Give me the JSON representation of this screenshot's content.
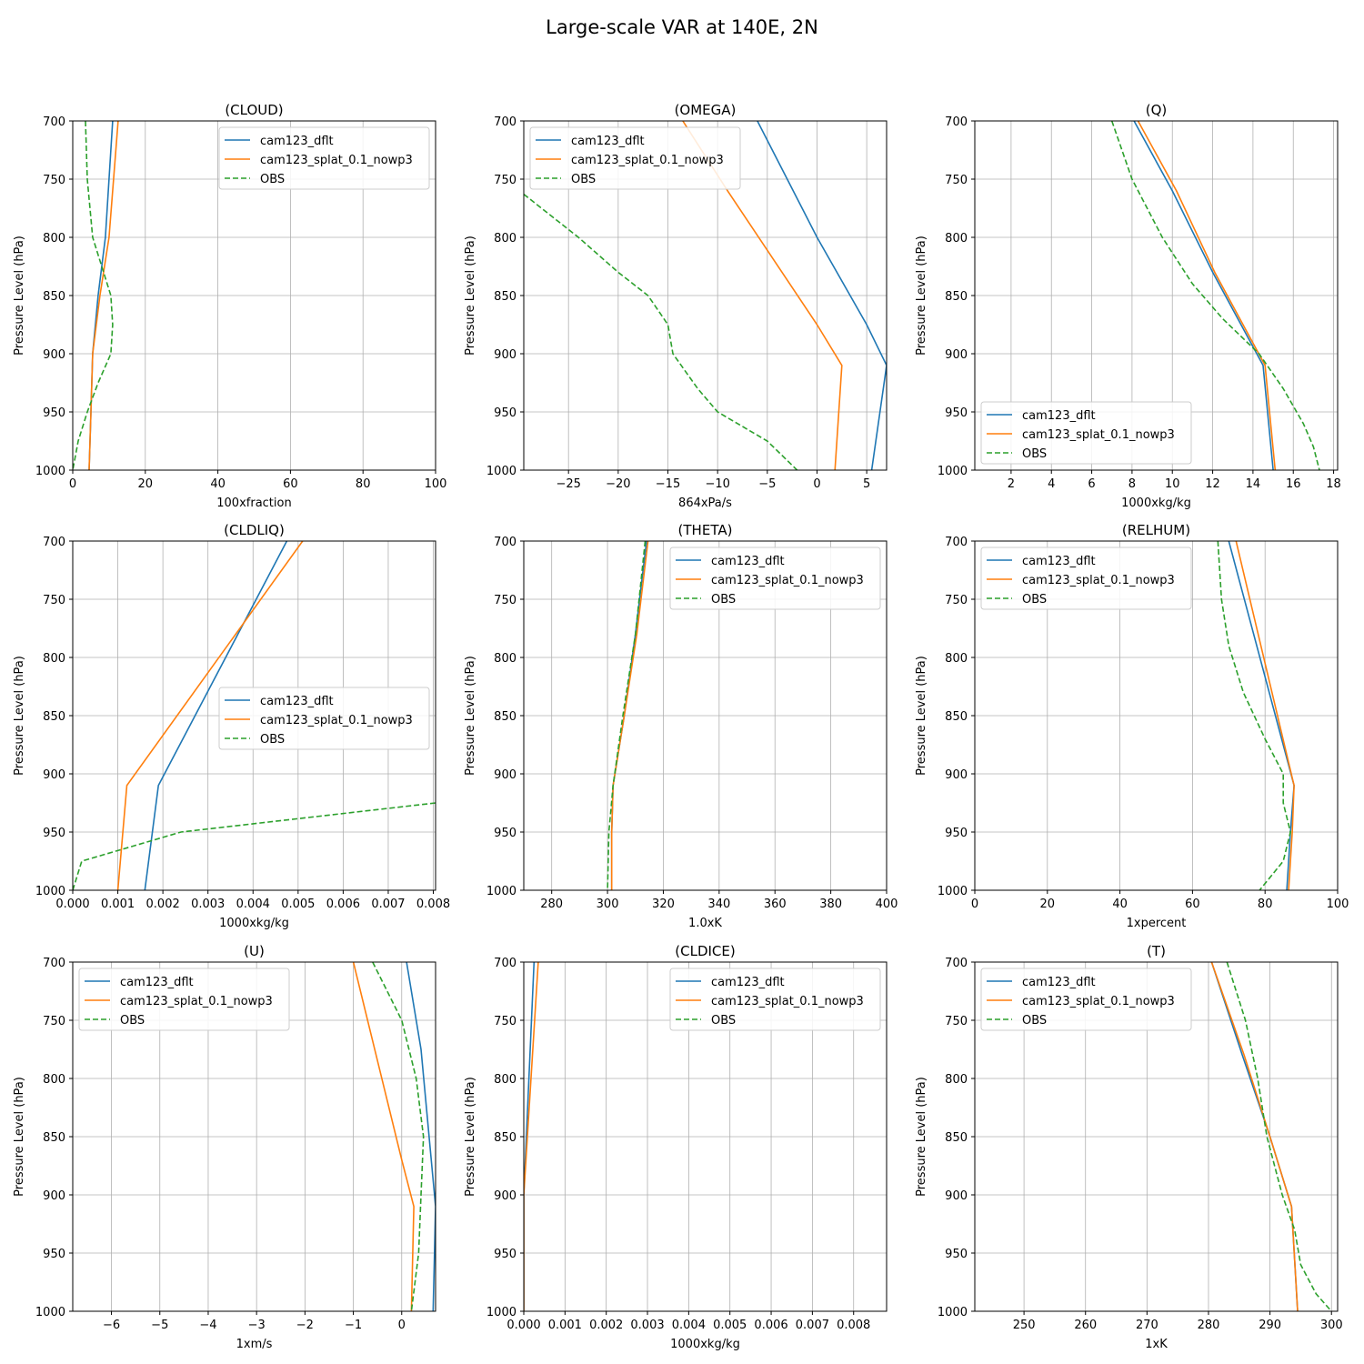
{
  "figure": {
    "suptitle": "Large-scale VAR at 140E, 2N"
  },
  "series_styles": [
    {
      "name": "cam123_dflt",
      "color": "#1f77b4",
      "dash": ""
    },
    {
      "name": "cam123_splat_0.1_nowp3",
      "color": "#ff7f0e",
      "dash": ""
    },
    {
      "name": "OBS",
      "color": "#2ca02c",
      "dash": "6,3"
    }
  ],
  "chart_data": [
    {
      "type": "line",
      "title": "(CLOUD)",
      "xlabel": "100xfraction",
      "ylabel": "Pressure Level (hPa)",
      "xlim": [
        0,
        100
      ],
      "ylim": [
        1000,
        700
      ],
      "y_inverted": true,
      "grid": true,
      "xticks": [
        0,
        20,
        40,
        60,
        80,
        100
      ],
      "xticklabels": [
        "0",
        "20",
        "40",
        "60",
        "80",
        "100"
      ],
      "yticks": [
        700,
        750,
        800,
        850,
        900,
        950,
        1000
      ],
      "legend": "top-right",
      "series": [
        {
          "name": "cam123_dflt",
          "points": [
            [
              11,
              700
            ],
            [
              9,
              800
            ],
            [
              7,
              850
            ],
            [
              5.5,
              900
            ],
            [
              5,
              950
            ],
            [
              4.5,
              1000
            ]
          ]
        },
        {
          "name": "cam123_splat_0.1_nowp3",
          "points": [
            [
              12.5,
              700
            ],
            [
              10,
              800
            ],
            [
              7.5,
              850
            ],
            [
              5.5,
              900
            ],
            [
              5,
              950
            ],
            [
              4.5,
              1000
            ]
          ]
        },
        {
          "name": "OBS",
          "points": [
            [
              3.5,
              700
            ],
            [
              4,
              750
            ],
            [
              5.5,
              800
            ],
            [
              8,
              825
            ],
            [
              10.5,
              850
            ],
            [
              11,
              875
            ],
            [
              10.5,
              900
            ],
            [
              7,
              925
            ],
            [
              4,
              950
            ],
            [
              1.5,
              975
            ],
            [
              0,
              1000
            ]
          ]
        }
      ]
    },
    {
      "type": "line",
      "title": "(OMEGA)",
      "xlabel": "864xPa/s",
      "ylabel": "Pressure Level (hPa)",
      "xlim": [
        -29.5,
        7
      ],
      "ylim": [
        1000,
        700
      ],
      "y_inverted": true,
      "grid": true,
      "xticks": [
        -25,
        -20,
        -15,
        -10,
        -5,
        0,
        5
      ],
      "xticklabels": [
        "−25",
        "−20",
        "−15",
        "−10",
        "−5",
        "0",
        "5"
      ],
      "yticks": [
        700,
        750,
        800,
        850,
        900,
        950,
        1000
      ],
      "legend": "top-left",
      "series": [
        {
          "name": "cam123_dflt",
          "points": [
            [
              -6,
              700
            ],
            [
              -4.5,
              725
            ],
            [
              0,
              800
            ],
            [
              5,
              875
            ],
            [
              7,
              910
            ],
            [
              5.5,
              1000
            ]
          ]
        },
        {
          "name": "cam123_splat_0.1_nowp3",
          "points": [
            [
              -13.5,
              700
            ],
            [
              -9,
              760
            ],
            [
              0,
              875
            ],
            [
              2.5,
              910
            ],
            [
              1.8,
              1000
            ]
          ]
        },
        {
          "name": "OBS",
          "points": [
            [
              -29.5,
              763
            ],
            [
              -24,
              800
            ],
            [
              -20,
              830
            ],
            [
              -17,
              850
            ],
            [
              -15,
              875
            ],
            [
              -14.5,
              900
            ],
            [
              -12,
              930
            ],
            [
              -10,
              950
            ],
            [
              -5,
              975
            ],
            [
              -2,
              1000
            ]
          ]
        }
      ]
    },
    {
      "type": "line",
      "title": "(Q)",
      "xlabel": "1000xkg/kg",
      "ylabel": "Pressure Level (hPa)",
      "xlim": [
        0.2,
        18.2
      ],
      "ylim": [
        1000,
        700
      ],
      "y_inverted": true,
      "grid": true,
      "xticks": [
        2,
        4,
        6,
        8,
        10,
        12,
        14,
        16,
        18
      ],
      "xticklabels": [
        "2",
        "4",
        "6",
        "8",
        "10",
        "12",
        "14",
        "16",
        "18"
      ],
      "yticks": [
        700,
        750,
        800,
        850,
        900,
        950,
        1000
      ],
      "legend": "lower-left",
      "series": [
        {
          "name": "cam123_dflt",
          "points": [
            [
              8.1,
              700
            ],
            [
              10,
              760
            ],
            [
              12,
              830
            ],
            [
              14.5,
              910
            ],
            [
              15,
              1000
            ]
          ]
        },
        {
          "name": "cam123_splat_0.1_nowp3",
          "points": [
            [
              8.3,
              700
            ],
            [
              10.2,
              760
            ],
            [
              12.1,
              830
            ],
            [
              14.6,
              910
            ],
            [
              15.1,
              1000
            ]
          ]
        },
        {
          "name": "OBS",
          "points": [
            [
              7,
              700
            ],
            [
              8,
              750
            ],
            [
              9.5,
              800
            ],
            [
              11,
              840
            ],
            [
              12.5,
              870
            ],
            [
              14.3,
              900
            ],
            [
              15.5,
              930
            ],
            [
              16.5,
              960
            ],
            [
              17,
              980
            ],
            [
              17.3,
              1000
            ]
          ]
        }
      ]
    },
    {
      "type": "line",
      "title": "(CLDLIQ)",
      "xlabel": "1000xkg/kg",
      "ylabel": "Pressure Level (hPa)",
      "xlim": [
        0,
        0.00805
      ],
      "ylim": [
        1000,
        700
      ],
      "y_inverted": true,
      "grid": true,
      "xticks": [
        0,
        0.001,
        0.002,
        0.003,
        0.004,
        0.005,
        0.006,
        0.007,
        0.008
      ],
      "xticklabels": [
        "0.000",
        "0.001",
        "0.002",
        "0.003",
        "0.004",
        "0.005",
        "0.006",
        "0.007",
        "0.008"
      ],
      "yticks": [
        700,
        750,
        800,
        850,
        900,
        950,
        1000
      ],
      "legend": "center-right",
      "series": [
        {
          "name": "cam123_dflt",
          "points": [
            [
              0.00475,
              700
            ],
            [
              0.0019,
              910
            ],
            [
              0.0016,
              1000
            ]
          ]
        },
        {
          "name": "cam123_splat_0.1_nowp3",
          "points": [
            [
              0.0051,
              700
            ],
            [
              0.0012,
              910
            ],
            [
              0.001,
              1000
            ]
          ]
        },
        {
          "name": "OBS",
          "points": [
            [
              0.00805,
              925
            ],
            [
              0.0024,
              950
            ],
            [
              0.0002,
              975
            ],
            [
              0,
              1000
            ]
          ]
        }
      ]
    },
    {
      "type": "line",
      "title": "(THETA)",
      "xlabel": "1.0xK",
      "ylabel": "Pressure Level (hPa)",
      "xlim": [
        270,
        400
      ],
      "ylim": [
        1000,
        700
      ],
      "y_inverted": true,
      "grid": true,
      "xticks": [
        280,
        300,
        320,
        340,
        360,
        380,
        400
      ],
      "xticklabels": [
        "280",
        "300",
        "320",
        "340",
        "360",
        "380",
        "400"
      ],
      "yticks": [
        700,
        750,
        800,
        850,
        900,
        950,
        1000
      ],
      "legend": "top-right",
      "series": [
        {
          "name": "cam123_dflt",
          "points": [
            [
              314,
              700
            ],
            [
              310,
              780
            ],
            [
              306,
              850
            ],
            [
              302,
              910
            ],
            [
              301.5,
              950
            ],
            [
              301.5,
              1000
            ]
          ]
        },
        {
          "name": "cam123_splat_0.1_nowp3",
          "points": [
            [
              314.5,
              700
            ],
            [
              310.5,
              780
            ],
            [
              306,
              850
            ],
            [
              302,
              910
            ],
            [
              301.5,
              950
            ],
            [
              301.5,
              1000
            ]
          ]
        },
        {
          "name": "OBS",
          "points": [
            [
              313.5,
              700
            ],
            [
              310,
              780
            ],
            [
              305.5,
              850
            ],
            [
              302,
              910
            ],
            [
              300.5,
              950
            ],
            [
              300,
              1000
            ]
          ]
        }
      ]
    },
    {
      "type": "line",
      "title": "(RELHUM)",
      "xlabel": "1xpercent",
      "ylabel": "Pressure Level (hPa)",
      "xlim": [
        0,
        100
      ],
      "ylim": [
        1000,
        700
      ],
      "y_inverted": true,
      "grid": true,
      "xticks": [
        0,
        20,
        40,
        60,
        80,
        100
      ],
      "xticklabels": [
        "0",
        "20",
        "40",
        "60",
        "80",
        "100"
      ],
      "yticks": [
        700,
        750,
        800,
        850,
        900,
        950,
        1000
      ],
      "legend": "top-left",
      "series": [
        {
          "name": "cam123_dflt",
          "points": [
            [
              70,
              700
            ],
            [
              88,
              910
            ],
            [
              87,
              950
            ],
            [
              86,
              1000
            ]
          ]
        },
        {
          "name": "cam123_splat_0.1_nowp3",
          "points": [
            [
              72,
              700
            ],
            [
              88,
              910
            ],
            [
              87.5,
              950
            ],
            [
              86.5,
              1000
            ]
          ]
        },
        {
          "name": "OBS",
          "points": [
            [
              67,
              700
            ],
            [
              68,
              750
            ],
            [
              70,
              790
            ],
            [
              74,
              830
            ],
            [
              80,
              870
            ],
            [
              85,
              900
            ],
            [
              85,
              925
            ],
            [
              87,
              950
            ],
            [
              85,
              975
            ],
            [
              78.5,
              1000
            ]
          ]
        }
      ]
    },
    {
      "type": "line",
      "title": "(U)",
      "xlabel": "1xm/s",
      "ylabel": "Pressure Level (hPa)",
      "xlim": [
        -6.8,
        0.7
      ],
      "ylim": [
        1000,
        700
      ],
      "y_inverted": true,
      "grid": true,
      "xticks": [
        -6,
        -5,
        -4,
        -3,
        -2,
        -1,
        0
      ],
      "xticklabels": [
        "−6",
        "−5",
        "−4",
        "−3",
        "−2",
        "−1",
        "0"
      ],
      "yticks": [
        700,
        750,
        800,
        850,
        900,
        950,
        1000
      ],
      "legend": "top-left",
      "series": [
        {
          "name": "cam123_dflt",
          "points": [
            [
              0.1,
              700
            ],
            [
              0.4,
              775
            ],
            [
              0.7,
              910
            ],
            [
              0.65,
              1000
            ]
          ]
        },
        {
          "name": "cam123_splat_0.1_nowp3",
          "points": [
            [
              -1,
              700
            ],
            [
              0,
              870
            ],
            [
              0.25,
              910
            ],
            [
              0.2,
              1000
            ]
          ]
        },
        {
          "name": "OBS",
          "points": [
            [
              -0.6,
              700
            ],
            [
              0,
              750
            ],
            [
              0.3,
              800
            ],
            [
              0.45,
              850
            ],
            [
              0.4,
              900
            ],
            [
              0.35,
              950
            ],
            [
              0.2,
              1000
            ]
          ]
        }
      ]
    },
    {
      "type": "line",
      "title": "(CLDICE)",
      "xlabel": "1000xkg/kg",
      "ylabel": "Pressure Level (hPa)",
      "xlim": [
        0,
        0.0088
      ],
      "ylim": [
        1000,
        700
      ],
      "y_inverted": true,
      "grid": true,
      "xticks": [
        0,
        0.001,
        0.002,
        0.003,
        0.004,
        0.005,
        0.006,
        0.007,
        0.008
      ],
      "xticklabels": [
        "0.000",
        "0.001",
        "0.002",
        "0.003",
        "0.004",
        "0.005",
        "0.006",
        "0.007",
        "0.008"
      ],
      "yticks": [
        700,
        750,
        800,
        850,
        900,
        950,
        1000
      ],
      "legend": "top-right",
      "series": [
        {
          "name": "cam123_dflt",
          "points": [
            [
              0.00025,
              700
            ],
            [
              0,
              900
            ],
            [
              0,
              1000
            ]
          ]
        },
        {
          "name": "cam123_splat_0.1_nowp3",
          "points": [
            [
              0.00035,
              700
            ],
            [
              0,
              900
            ],
            [
              0,
              1000
            ]
          ]
        },
        {
          "name": "OBS",
          "points": []
        }
      ]
    },
    {
      "type": "line",
      "title": "(T)",
      "xlabel": "1xK",
      "ylabel": "Pressure Level (hPa)",
      "xlim": [
        242,
        301
      ],
      "ylim": [
        1000,
        700
      ],
      "y_inverted": true,
      "grid": true,
      "xticks": [
        250,
        260,
        270,
        280,
        290,
        300
      ],
      "xticklabels": [
        "250",
        "260",
        "270",
        "280",
        "290",
        "300"
      ],
      "yticks": [
        700,
        750,
        800,
        850,
        900,
        950,
        1000
      ],
      "legend": "top-left",
      "series": [
        {
          "name": "cam123_dflt",
          "points": [
            [
              280.5,
              700
            ],
            [
              285.5,
              780
            ],
            [
              290,
              850
            ],
            [
              293.5,
              910
            ],
            [
              294.5,
              1000
            ]
          ]
        },
        {
          "name": "cam123_splat_0.1_nowp3",
          "points": [
            [
              280.5,
              700
            ],
            [
              285.8,
              780
            ],
            [
              290,
              850
            ],
            [
              293.5,
              910
            ],
            [
              294.5,
              1000
            ]
          ]
        },
        {
          "name": "OBS",
          "points": [
            [
              283,
              700
            ],
            [
              286,
              750
            ],
            [
              288,
              800
            ],
            [
              289.5,
              850
            ],
            [
              292,
              900
            ],
            [
              294,
              930
            ],
            [
              295,
              960
            ],
            [
              297.5,
              985
            ],
            [
              300,
              1000
            ]
          ]
        }
      ]
    }
  ]
}
